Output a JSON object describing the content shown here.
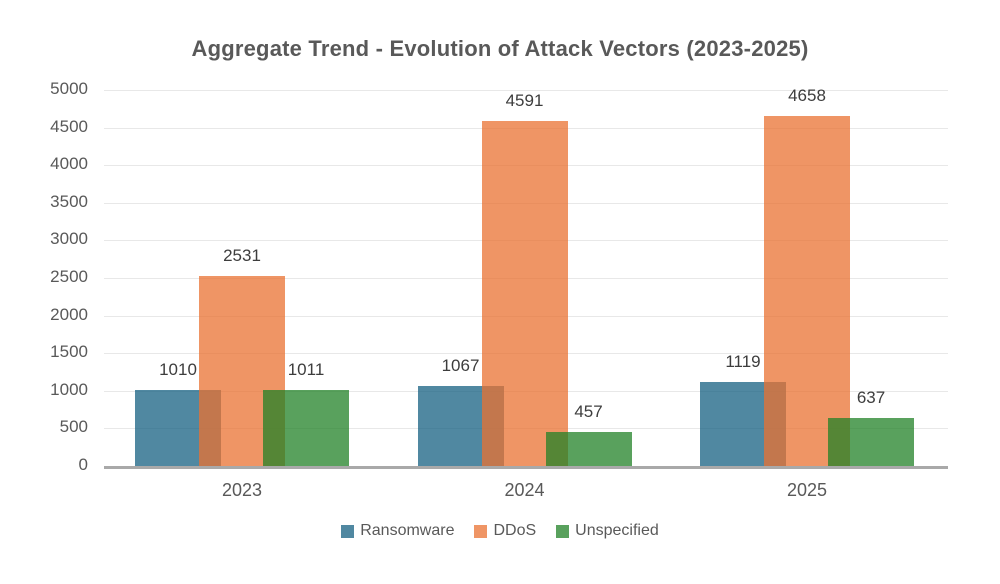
{
  "chart_data": {
    "type": "bar",
    "title": "Aggregate Trend - Evolution of Attack Vectors (2023-2025)",
    "categories": [
      "2023",
      "2024",
      "2025"
    ],
    "series": [
      {
        "name": "Ransomware",
        "color": "#156082",
        "values": [
          1010,
          1067,
          1119
        ]
      },
      {
        "name": "DDoS",
        "color": "#E97132",
        "values": [
          2531,
          4591,
          4658
        ]
      },
      {
        "name": "Unspecified",
        "color": "#218227",
        "values": [
          1011,
          457,
          637
        ]
      }
    ],
    "xlabel": "",
    "ylabel": "",
    "ylim": [
      0,
      5000
    ],
    "ytick_step": 500,
    "bar_alpha": 0.75,
    "bar_style": "overlapping",
    "grid": true,
    "value_labels": true,
    "legend_position": "bottom",
    "text_color": "#595959",
    "value_label_color": "#3d3d3d",
    "gridline_color": "#e8e8e8",
    "axis_line_color": "#a9a9a9"
  }
}
